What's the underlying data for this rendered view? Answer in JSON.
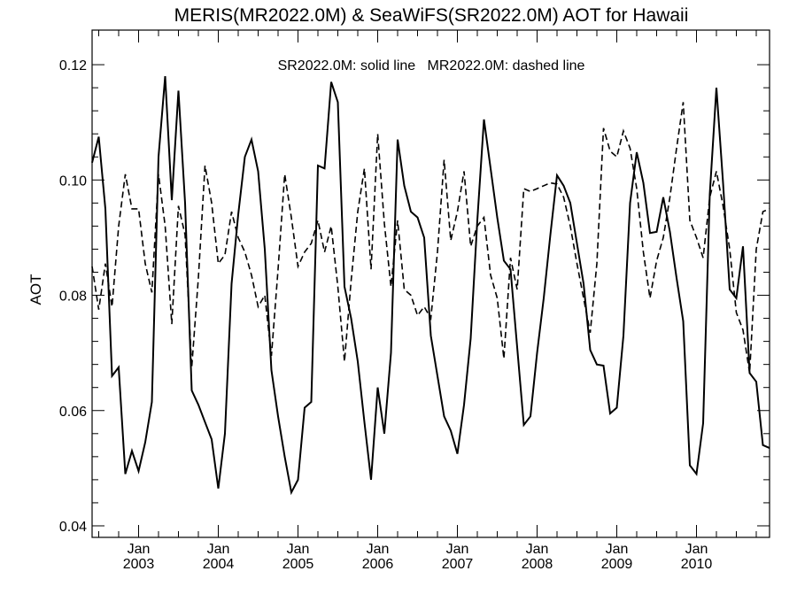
{
  "chart_data": {
    "type": "line",
    "title": "MERIS(MR2022.0M) & SeaWiFS(SR2022.0M)  AOT for Hawaii",
    "ylabel": "AOT",
    "xlabel": "",
    "annotation": "SR2022.0M: solid line   MR2022.0M: dashed line",
    "xlim": [
      "2002-06",
      "2010-12"
    ],
    "ylim": [
      0.038,
      0.126
    ],
    "y_ticks": [
      0.04,
      0.06,
      0.08,
      0.1,
      0.12
    ],
    "y_tick_labels": [
      "0.04",
      "0.06",
      "0.08",
      "0.10",
      "0.12"
    ],
    "x_ticks": [
      "2003-01",
      "2004-01",
      "2005-01",
      "2006-01",
      "2007-01",
      "2008-01",
      "2009-01",
      "2010-01"
    ],
    "x_tick_month_label": "Jan",
    "x_tick_year_labels": [
      "2003",
      "2004",
      "2005",
      "2006",
      "2007",
      "2008",
      "2009",
      "2010"
    ],
    "grid": false,
    "series": [
      {
        "name": "SR2022.0M",
        "style": "solid",
        "color": "#000000",
        "points": [
          [
            "2002-06",
            0.103
          ],
          [
            "2002-07",
            0.1075
          ],
          [
            "2002-08",
            0.095
          ],
          [
            "2002-09",
            0.066
          ],
          [
            "2002-10",
            0.0675
          ],
          [
            "2002-11",
            0.049
          ],
          [
            "2002-12",
            0.053
          ],
          [
            "2003-01",
            0.0495
          ],
          [
            "2003-02",
            0.0545
          ],
          [
            "2003-03",
            0.0615
          ],
          [
            "2003-04",
            0.104
          ],
          [
            "2003-05",
            0.118
          ],
          [
            "2003-06",
            0.0965
          ],
          [
            "2003-07",
            0.1155
          ],
          [
            "2003-08",
            0.096
          ],
          [
            "2003-09",
            0.0635
          ],
          [
            "2003-10",
            0.061
          ],
          [
            "2003-11",
            0.058
          ],
          [
            "2003-12",
            0.055
          ],
          [
            "2004-01",
            0.0465
          ],
          [
            "2004-02",
            0.056
          ],
          [
            "2004-03",
            0.082
          ],
          [
            "2004-04",
            0.094
          ],
          [
            "2004-05",
            0.104
          ],
          [
            "2004-06",
            0.107
          ],
          [
            "2004-07",
            0.1015
          ],
          [
            "2004-08",
            0.088
          ],
          [
            "2004-09",
            0.067
          ],
          [
            "2004-10",
            0.059
          ],
          [
            "2004-11",
            0.052
          ],
          [
            "2004-12",
            0.0458
          ],
          [
            "2005-01",
            0.048
          ],
          [
            "2005-02",
            0.0605
          ],
          [
            "2005-03",
            0.0615
          ],
          [
            "2005-04",
            0.1025
          ],
          [
            "2005-05",
            0.102
          ],
          [
            "2005-06",
            0.117
          ],
          [
            "2005-07",
            0.1135
          ],
          [
            "2005-08",
            0.0815
          ],
          [
            "2005-09",
            0.076
          ],
          [
            "2005-10",
            0.0685
          ],
          [
            "2005-11",
            0.058
          ],
          [
            "2005-12",
            0.048
          ],
          [
            "2006-01",
            0.064
          ],
          [
            "2006-02",
            0.056
          ],
          [
            "2006-03",
            0.07
          ],
          [
            "2006-04",
            0.107
          ],
          [
            "2006-05",
            0.099
          ],
          [
            "2006-06",
            0.0945
          ],
          [
            "2006-07",
            0.0935
          ],
          [
            "2006-08",
            0.09
          ],
          [
            "2006-09",
            0.073
          ],
          [
            "2006-10",
            0.066
          ],
          [
            "2006-11",
            0.059
          ],
          [
            "2006-12",
            0.0565
          ],
          [
            "2007-01",
            0.0525
          ],
          [
            "2007-02",
            0.061
          ],
          [
            "2007-03",
            0.0725
          ],
          [
            "2007-04",
            0.093
          ],
          [
            "2007-05",
            0.1105
          ],
          [
            "2007-06",
            0.102
          ],
          [
            "2007-07",
            0.0935
          ],
          [
            "2007-08",
            0.086
          ],
          [
            "2007-09",
            0.0845
          ],
          [
            "2007-10",
            0.071
          ],
          [
            "2007-11",
            0.0575
          ],
          [
            "2007-12",
            0.059
          ],
          [
            "2008-01",
            0.07
          ],
          [
            "2008-02",
            0.0795
          ],
          [
            "2008-03",
            0.0905
          ],
          [
            "2008-04",
            0.1008
          ],
          [
            "2008-05",
            0.099
          ],
          [
            "2008-06",
            0.096
          ],
          [
            "2008-07",
            0.089
          ],
          [
            "2008-08",
            0.082
          ],
          [
            "2008-09",
            0.0705
          ],
          [
            "2008-10",
            0.068
          ],
          [
            "2008-11",
            0.0678
          ],
          [
            "2008-12",
            0.0595
          ],
          [
            "2009-01",
            0.0605
          ],
          [
            "2009-02",
            0.073
          ],
          [
            "2009-03",
            0.096
          ],
          [
            "2009-04",
            0.1048
          ],
          [
            "2009-05",
            0.0995
          ],
          [
            "2009-06",
            0.0908
          ],
          [
            "2009-07",
            0.091
          ],
          [
            "2009-08",
            0.097
          ],
          [
            "2009-09",
            0.091
          ],
          [
            "2009-10",
            0.083
          ],
          [
            "2009-11",
            0.0755
          ],
          [
            "2009-12",
            0.0505
          ],
          [
            "2010-01",
            0.049
          ],
          [
            "2010-02",
            0.0578
          ],
          [
            "2010-03",
            0.0975
          ],
          [
            "2010-04",
            0.116
          ],
          [
            "2010-05",
            0.0995
          ],
          [
            "2010-06",
            0.081
          ],
          [
            "2010-07",
            0.0795
          ],
          [
            "2010-08",
            0.0885
          ],
          [
            "2010-09",
            0.0665
          ],
          [
            "2010-10",
            0.065
          ],
          [
            "2010-11",
            0.054
          ],
          [
            "2010-12",
            0.0535
          ]
        ]
      },
      {
        "name": "MR2022.0M",
        "style": "dashed",
        "color": "#000000",
        "points": [
          [
            "2002-06",
            0.085
          ],
          [
            "2002-07",
            0.0775
          ],
          [
            "2002-08",
            0.0855
          ],
          [
            "2002-09",
            0.078
          ],
          [
            "2002-10",
            0.092
          ],
          [
            "2002-11",
            0.101
          ],
          [
            "2002-12",
            0.095
          ],
          [
            "2003-01",
            0.095
          ],
          [
            "2003-02",
            0.0855
          ],
          [
            "2003-03",
            0.0805
          ],
          [
            "2003-04",
            0.101
          ],
          [
            "2003-05",
            0.092
          ],
          [
            "2003-06",
            0.075
          ],
          [
            "2003-07",
            0.0955
          ],
          [
            "2003-08",
            0.0905
          ],
          [
            "2003-09",
            0.0675
          ],
          [
            "2003-10",
            0.083
          ],
          [
            "2003-11",
            0.1025
          ],
          [
            "2003-12",
            0.096
          ],
          [
            "2004-01",
            0.0855
          ],
          [
            "2004-02",
            0.087
          ],
          [
            "2004-03",
            0.0945
          ],
          [
            "2004-04",
            0.09
          ],
          [
            "2004-05",
            0.0875
          ],
          [
            "2004-06",
            0.0835
          ],
          [
            "2004-07",
            0.078
          ],
          [
            "2004-08",
            0.08
          ],
          [
            "2004-09",
            0.0695
          ],
          [
            "2004-10",
            0.0845
          ],
          [
            "2004-11",
            0.101
          ],
          [
            "2004-12",
            0.0935
          ],
          [
            "2005-01",
            0.085
          ],
          [
            "2005-02",
            0.0875
          ],
          [
            "2005-03",
            0.089
          ],
          [
            "2005-04",
            0.093
          ],
          [
            "2005-05",
            0.0875
          ],
          [
            "2005-06",
            0.092
          ],
          [
            "2005-07",
            0.0815
          ],
          [
            "2005-08",
            0.0685
          ],
          [
            "2005-09",
            0.0825
          ],
          [
            "2005-10",
            0.0945
          ],
          [
            "2005-11",
            0.102
          ],
          [
            "2005-12",
            0.0845
          ],
          [
            "2006-01",
            0.108
          ],
          [
            "2006-02",
            0.0925
          ],
          [
            "2006-03",
            0.0815
          ],
          [
            "2006-04",
            0.093
          ],
          [
            "2006-05",
            0.081
          ],
          [
            "2006-06",
            0.08
          ],
          [
            "2006-07",
            0.0765
          ],
          [
            "2006-08",
            0.078
          ],
          [
            "2006-09",
            0.076
          ],
          [
            "2006-10",
            0.0875
          ],
          [
            "2006-11",
            0.1035
          ],
          [
            "2006-12",
            0.0895
          ],
          [
            "2007-01",
            0.0945
          ],
          [
            "2007-02",
            0.1015
          ],
          [
            "2007-03",
            0.0885
          ],
          [
            "2007-04",
            0.092
          ],
          [
            "2007-05",
            0.0935
          ],
          [
            "2007-06",
            0.0835
          ],
          [
            "2007-07",
            0.0795
          ],
          [
            "2007-08",
            0.069
          ],
          [
            "2007-09",
            0.0865
          ],
          [
            "2007-10",
            0.081
          ],
          [
            "2007-11",
            0.0985
          ],
          [
            "2007-12",
            0.098
          ],
          [
            "2008-01",
            0.0985
          ],
          [
            "2008-02",
            0.099
          ],
          [
            "2008-03",
            0.0995
          ],
          [
            "2008-04",
            0.0993
          ],
          [
            "2008-05",
            0.097
          ],
          [
            "2008-06",
            0.092
          ],
          [
            "2008-07",
            0.0855
          ],
          [
            "2008-08",
            0.0795
          ],
          [
            "2008-09",
            0.0735
          ],
          [
            "2008-10",
            0.0855
          ],
          [
            "2008-11",
            0.109
          ],
          [
            "2008-12",
            0.105
          ],
          [
            "2009-01",
            0.104
          ],
          [
            "2009-02",
            0.1085
          ],
          [
            "2009-03",
            0.1055
          ],
          [
            "2009-04",
            0.0985
          ],
          [
            "2009-05",
            0.0875
          ],
          [
            "2009-06",
            0.0795
          ],
          [
            "2009-07",
            0.086
          ],
          [
            "2009-08",
            0.09
          ],
          [
            "2009-09",
            0.097
          ],
          [
            "2009-10",
            0.1055
          ],
          [
            "2009-11",
            0.1135
          ],
          [
            "2009-12",
            0.093
          ],
          [
            "2010-01",
            0.09
          ],
          [
            "2010-02",
            0.0865
          ],
          [
            "2010-03",
            0.097
          ],
          [
            "2010-04",
            0.1015
          ],
          [
            "2010-05",
            0.0955
          ],
          [
            "2010-06",
            0.088
          ],
          [
            "2010-07",
            0.077
          ],
          [
            "2010-08",
            0.074
          ],
          [
            "2010-09",
            0.0665
          ],
          [
            "2010-10",
            0.088
          ],
          [
            "2010-11",
            0.0945
          ],
          [
            "2010-12",
            0.095
          ]
        ]
      }
    ]
  }
}
